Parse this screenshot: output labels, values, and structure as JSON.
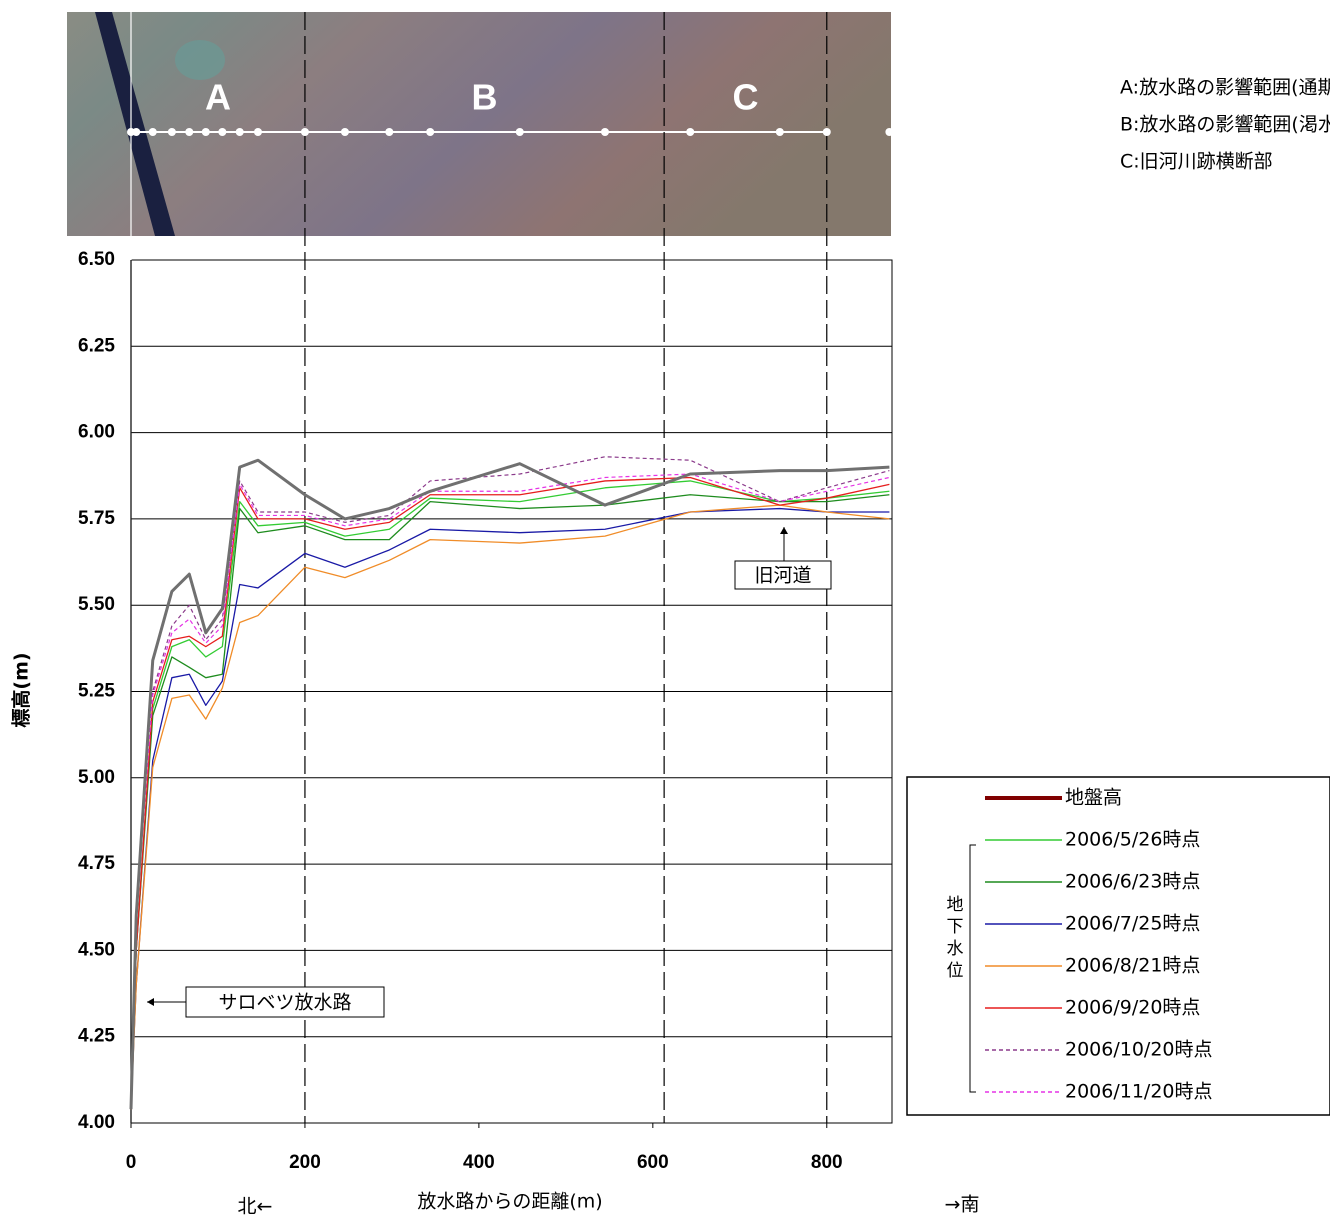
{
  "chart_data": {
    "type": "line",
    "x_label": "放水路からの距離(m)",
    "y_label": "標高(m)",
    "north_label": "北←",
    "south_label": "→南",
    "xlim": [
      0,
      875
    ],
    "ylim": [
      4.0,
      6.5
    ],
    "xticks": [
      0,
      200,
      400,
      600,
      800
    ],
    "yticks": [
      {
        "value": 4.0,
        "label": "4.00"
      },
      {
        "value": 4.25,
        "label": "4.25"
      },
      {
        "value": 4.5,
        "label": "4.50"
      },
      {
        "value": 4.75,
        "label": "4.75"
      },
      {
        "value": 5.0,
        "label": "5.00"
      },
      {
        "value": 5.25,
        "label": "5.25"
      },
      {
        "value": 5.5,
        "label": "5.50"
      },
      {
        "value": 5.75,
        "label": "5.75"
      },
      {
        "value": 6.0,
        "label": "6.00"
      },
      {
        "value": 6.25,
        "label": "6.25"
      },
      {
        "value": 6.5,
        "label": "6.50"
      }
    ],
    "grid": true,
    "zone_boundaries": [
      200,
      613,
      800
    ],
    "zone_labels": [
      "A",
      "B",
      "C"
    ],
    "notes": [
      "A:放水路の影響範囲(通期)",
      "B:放水路の影響範囲(渇水期のみ)",
      "C:旧河川跡横断部"
    ],
    "annotations": [
      "サロベツ放水路",
      "旧河道"
    ],
    "legend_group_label": "地下水位",
    "x": [
      0,
      6,
      25,
      47,
      67,
      86,
      105,
      125,
      146,
      200,
      246,
      297,
      344,
      447,
      545,
      643,
      746,
      800,
      872
    ],
    "series": [
      {
        "name": "地盤高",
        "color": "#707070",
        "legend_color": "#800000",
        "width": 3,
        "dash": false,
        "values": [
          4.04,
          4.6,
          5.34,
          5.54,
          5.59,
          5.42,
          5.49,
          5.9,
          5.92,
          5.82,
          5.75,
          5.78,
          5.83,
          5.91,
          5.79,
          5.88,
          5.89,
          5.89,
          5.9
        ]
      },
      {
        "name": "2006/5/26時点",
        "color": "#33cc33",
        "width": 1.3,
        "dash": false,
        "values": [
          4.05,
          4.5,
          5.2,
          5.38,
          5.4,
          5.35,
          5.38,
          5.8,
          5.73,
          5.74,
          5.7,
          5.72,
          5.81,
          5.8,
          5.84,
          5.86,
          5.8,
          5.81,
          5.83
        ]
      },
      {
        "name": "2006/6/23時点",
        "color": "#1e8c1e",
        "width": 1.3,
        "dash": false,
        "values": [
          4.05,
          4.5,
          5.18,
          5.35,
          5.32,
          5.29,
          5.3,
          5.78,
          5.71,
          5.73,
          5.69,
          5.69,
          5.8,
          5.78,
          5.79,
          5.82,
          5.8,
          5.8,
          5.82
        ]
      },
      {
        "name": "2006/7/25時点",
        "color": "#1a1aa6",
        "width": 1.3,
        "dash": false,
        "values": [
          4.05,
          4.4,
          5.05,
          5.29,
          5.3,
          5.21,
          5.28,
          5.56,
          5.55,
          5.65,
          5.61,
          5.66,
          5.72,
          5.71,
          5.72,
          5.77,
          5.78,
          5.77,
          5.77
        ]
      },
      {
        "name": "2006/8/21時点",
        "color": "#f08c28",
        "width": 1.3,
        "dash": false,
        "values": [
          4.04,
          4.4,
          5.03,
          5.23,
          5.24,
          5.17,
          5.26,
          5.45,
          5.47,
          5.61,
          5.58,
          5.63,
          5.69,
          5.68,
          5.7,
          5.77,
          5.79,
          5.77,
          5.75
        ]
      },
      {
        "name": "2006/9/20時点",
        "color": "#e61e1e",
        "width": 1.3,
        "dash": false,
        "values": [
          4.05,
          4.5,
          5.22,
          5.4,
          5.41,
          5.38,
          5.41,
          5.84,
          5.75,
          5.75,
          5.72,
          5.74,
          5.82,
          5.82,
          5.86,
          5.87,
          5.79,
          5.81,
          5.85
        ]
      },
      {
        "name": "2006/10/20時点",
        "color": "#8b3a8b",
        "width": 1.2,
        "dash": true,
        "values": [
          4.06,
          4.6,
          5.25,
          5.44,
          5.5,
          5.4,
          5.46,
          5.86,
          5.77,
          5.77,
          5.74,
          5.76,
          5.86,
          5.88,
          5.93,
          5.92,
          5.8,
          5.84,
          5.89
        ]
      },
      {
        "name": "2006/11/20時点",
        "color": "#e633e6",
        "width": 1.2,
        "dash": true,
        "values": [
          4.06,
          4.6,
          5.24,
          5.42,
          5.46,
          5.39,
          5.44,
          5.85,
          5.76,
          5.76,
          5.73,
          5.75,
          5.83,
          5.83,
          5.87,
          5.88,
          5.8,
          5.83,
          5.87
        ]
      }
    ]
  }
}
